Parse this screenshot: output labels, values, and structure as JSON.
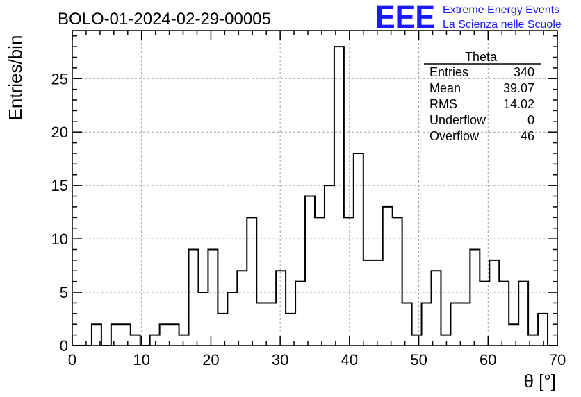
{
  "title": "BOLO-01-2024-02-29-00005",
  "logo": {
    "mark": "EEE",
    "line1": "Extreme Energy Events",
    "line2": "La Scienza nelle Scuole",
    "color": "#1a1aff"
  },
  "stats": {
    "header": "Theta",
    "rows": [
      {
        "label": "Entries",
        "value": "340"
      },
      {
        "label": "Mean",
        "value": "39.07"
      },
      {
        "label": "RMS",
        "value": "14.02"
      },
      {
        "label": "Underflow",
        "value": "0"
      },
      {
        "label": "Overflow",
        "value": "46"
      }
    ]
  },
  "chart_data": {
    "type": "bar",
    "style": "step-histogram",
    "title": "BOLO-01-2024-02-29-00005",
    "xlabel": "θ [°]",
    "ylabel": "Entries/bin",
    "xlim": [
      0,
      70
    ],
    "ylim": [
      0,
      29.5
    ],
    "bin_width": 1.4,
    "x_ticks": [
      0,
      10,
      20,
      30,
      40,
      50,
      60,
      70
    ],
    "x_tick_labels": [
      "0",
      "10",
      "20",
      "30",
      "40",
      "50",
      "60",
      "70"
    ],
    "y_ticks": [
      0,
      5,
      10,
      15,
      20,
      25
    ],
    "y_tick_labels": [
      "0",
      "5",
      "10",
      "15",
      "20",
      "25"
    ],
    "grid": true,
    "values": [
      0,
      0,
      2,
      0,
      2,
      2,
      1,
      0,
      1,
      2,
      2,
      1,
      9,
      5,
      9,
      3,
      5,
      7,
      12,
      4,
      4,
      7,
      3,
      6,
      14,
      12,
      15,
      28,
      12,
      18,
      8,
      8,
      13,
      12,
      4,
      1,
      4,
      7,
      1,
      4,
      4,
      9,
      6,
      8,
      6,
      2,
      6,
      1,
      3,
      0
    ],
    "line_color": "#000000"
  }
}
